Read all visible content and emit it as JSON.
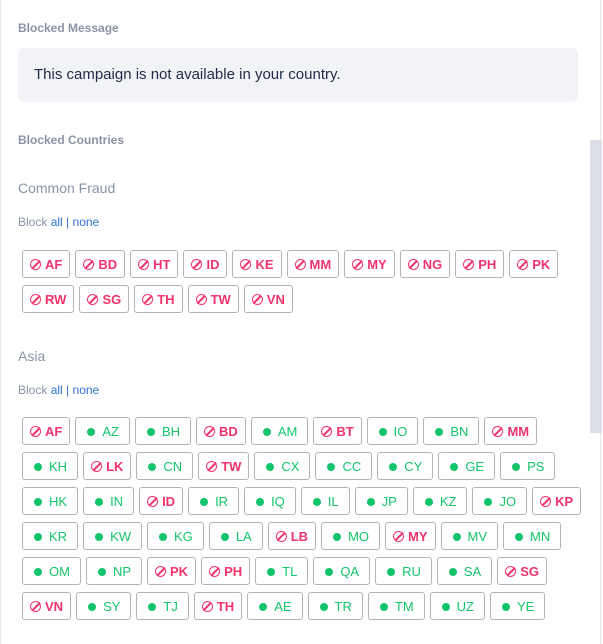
{
  "blocked_message": {
    "label": "Blocked Message",
    "text": "This campaign is not available in your country."
  },
  "blocked_countries": {
    "label": "Blocked Countries"
  },
  "colors": {
    "blocked": "#f0336b",
    "allowed": "#13c46a",
    "link": "#2f6fd0"
  },
  "groups": [
    {
      "title": "Common Fraud",
      "block_prefix": "Block",
      "all": "all",
      "sep": "|",
      "none": "none",
      "countries": [
        {
          "code": "AF",
          "blocked": true
        },
        {
          "code": "BD",
          "blocked": true
        },
        {
          "code": "HT",
          "blocked": true
        },
        {
          "code": "ID",
          "blocked": true
        },
        {
          "code": "KE",
          "blocked": true
        },
        {
          "code": "MM",
          "blocked": true
        },
        {
          "code": "MY",
          "blocked": true
        },
        {
          "code": "NG",
          "blocked": true
        },
        {
          "code": "PH",
          "blocked": true
        },
        {
          "code": "PK",
          "blocked": true
        },
        {
          "code": "RW",
          "blocked": true
        },
        {
          "code": "SG",
          "blocked": true
        },
        {
          "code": "TH",
          "blocked": true
        },
        {
          "code": "TW",
          "blocked": true
        },
        {
          "code": "VN",
          "blocked": true
        }
      ]
    },
    {
      "title": "Asia",
      "block_prefix": "Block",
      "all": "all",
      "sep": "|",
      "none": "none",
      "countries": [
        {
          "code": "AF",
          "blocked": true
        },
        {
          "code": "AZ",
          "blocked": false
        },
        {
          "code": "BH",
          "blocked": false
        },
        {
          "code": "BD",
          "blocked": true
        },
        {
          "code": "AM",
          "blocked": false
        },
        {
          "code": "BT",
          "blocked": true
        },
        {
          "code": "IO",
          "blocked": false
        },
        {
          "code": "BN",
          "blocked": false
        },
        {
          "code": "MM",
          "blocked": true
        },
        {
          "code": "KH",
          "blocked": false
        },
        {
          "code": "LK",
          "blocked": true
        },
        {
          "code": "CN",
          "blocked": false
        },
        {
          "code": "TW",
          "blocked": true
        },
        {
          "code": "CX",
          "blocked": false
        },
        {
          "code": "CC",
          "blocked": false
        },
        {
          "code": "CY",
          "blocked": false
        },
        {
          "code": "GE",
          "blocked": false
        },
        {
          "code": "PS",
          "blocked": false
        },
        {
          "code": "HK",
          "blocked": false
        },
        {
          "code": "IN",
          "blocked": false
        },
        {
          "code": "ID",
          "blocked": true
        },
        {
          "code": "IR",
          "blocked": false
        },
        {
          "code": "IQ",
          "blocked": false
        },
        {
          "code": "IL",
          "blocked": false
        },
        {
          "code": "JP",
          "blocked": false
        },
        {
          "code": "KZ",
          "blocked": false
        },
        {
          "code": "JO",
          "blocked": false
        },
        {
          "code": "KP",
          "blocked": true
        },
        {
          "code": "KR",
          "blocked": false
        },
        {
          "code": "KW",
          "blocked": false
        },
        {
          "code": "KG",
          "blocked": false
        },
        {
          "code": "LA",
          "blocked": false
        },
        {
          "code": "LB",
          "blocked": true
        },
        {
          "code": "MO",
          "blocked": false
        },
        {
          "code": "MY",
          "blocked": true
        },
        {
          "code": "MV",
          "blocked": false
        },
        {
          "code": "MN",
          "blocked": false
        },
        {
          "code": "OM",
          "blocked": false
        },
        {
          "code": "NP",
          "blocked": false
        },
        {
          "code": "PK",
          "blocked": true
        },
        {
          "code": "PH",
          "blocked": true
        },
        {
          "code": "TL",
          "blocked": false
        },
        {
          "code": "QA",
          "blocked": false
        },
        {
          "code": "RU",
          "blocked": false
        },
        {
          "code": "SA",
          "blocked": false
        },
        {
          "code": "SG",
          "blocked": true
        },
        {
          "code": "VN",
          "blocked": true
        },
        {
          "code": "SY",
          "blocked": false
        },
        {
          "code": "TJ",
          "blocked": false
        },
        {
          "code": "TH",
          "blocked": true
        },
        {
          "code": "AE",
          "blocked": false
        },
        {
          "code": "TR",
          "blocked": false
        },
        {
          "code": "TM",
          "blocked": false
        },
        {
          "code": "UZ",
          "blocked": false
        },
        {
          "code": "YE",
          "blocked": false
        }
      ]
    }
  ]
}
